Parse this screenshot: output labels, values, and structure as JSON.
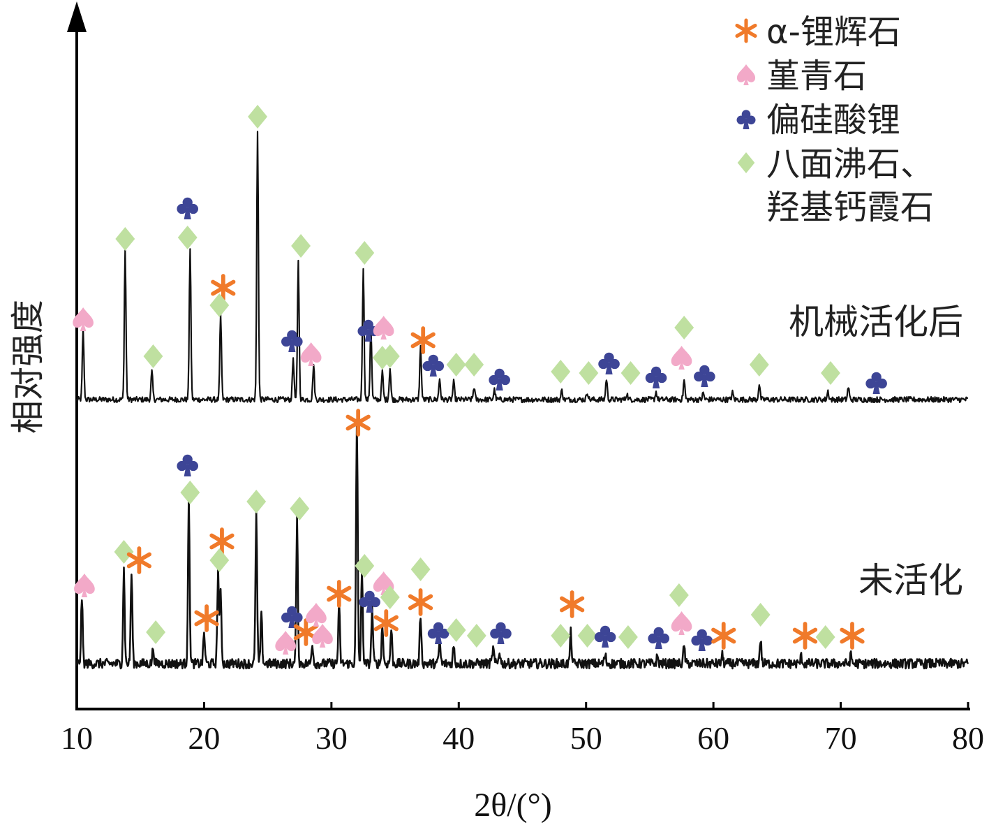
{
  "chart_data": {
    "type": "line",
    "xlabel": "2θ/(°)",
    "ylabel": "相对强度",
    "xlim": [
      10,
      80
    ],
    "xticks": [
      10,
      20,
      30,
      40,
      50,
      60,
      70,
      80
    ],
    "grid": false,
    "legend_position": "top-right",
    "legend": [
      {
        "key": "spodumene",
        "label": "α-锂辉石",
        "color": "#f07a2a",
        "glyph": "star"
      },
      {
        "key": "cordierite",
        "label": "堇青石",
        "color": "#f2a9c8",
        "glyph": "spade"
      },
      {
        "key": "lithium_metasilicate",
        "label": "偏硅酸锂",
        "color": "#3d4596",
        "glyph": "club"
      },
      {
        "key": "faujasite_hydroxycancrinite",
        "label": "八面沸石、\n羟基钙霞石",
        "color": "#bfe0a0",
        "glyph": "diamond"
      }
    ],
    "series": [
      {
        "name": "机械活化后",
        "baseline": 0,
        "peaks": [
          [
            10.5,
            100
          ],
          [
            13.8,
            215
          ],
          [
            15.9,
            40
          ],
          [
            18.9,
            215
          ],
          [
            21.3,
            120
          ],
          [
            24.2,
            385
          ],
          [
            27.0,
            60
          ],
          [
            27.4,
            200
          ],
          [
            28.6,
            50
          ],
          [
            32.5,
            190
          ],
          [
            33.1,
            105
          ],
          [
            34.0,
            40
          ],
          [
            34.6,
            45
          ],
          [
            37.0,
            75
          ],
          [
            38.5,
            30
          ],
          [
            39.6,
            25
          ],
          [
            41.2,
            18
          ],
          [
            42.8,
            14
          ],
          [
            48.1,
            13
          ],
          [
            50.1,
            11
          ],
          [
            51.6,
            30
          ],
          [
            53.2,
            9
          ],
          [
            55.5,
            11
          ],
          [
            57.7,
            28
          ],
          [
            59.2,
            9
          ],
          [
            61.5,
            10
          ],
          [
            63.6,
            22
          ],
          [
            69.0,
            12
          ],
          [
            70.6,
            18
          ]
        ],
        "markers": [
          {
            "phase": "cordierite",
            "x": 10.5,
            "y": 115
          },
          {
            "phase": "faujasite_hydroxycancrinite",
            "x": 13.8,
            "y": 230
          },
          {
            "phase": "faujasite_hydroxycancrinite",
            "x": 16.0,
            "y": 62
          },
          {
            "phase": "faujasite_hydroxycancrinite",
            "x": 18.7,
            "y": 232
          },
          {
            "phase": "lithium_metasilicate",
            "x": 18.7,
            "y": 275
          },
          {
            "phase": "spodumene",
            "x": 21.5,
            "y": 160
          },
          {
            "phase": "faujasite_hydroxycancrinite",
            "x": 21.2,
            "y": 135
          },
          {
            "phase": "faujasite_hydroxycancrinite",
            "x": 24.2,
            "y": 405
          },
          {
            "phase": "lithium_metasilicate",
            "x": 26.9,
            "y": 85
          },
          {
            "phase": "cordierite",
            "x": 28.4,
            "y": 65
          },
          {
            "phase": "faujasite_hydroxycancrinite",
            "x": 27.6,
            "y": 220
          },
          {
            "phase": "faujasite_hydroxycancrinite",
            "x": 32.6,
            "y": 210
          },
          {
            "phase": "lithium_metasilicate",
            "x": 32.9,
            "y": 100
          },
          {
            "phase": "cordierite",
            "x": 34.1,
            "y": 103
          },
          {
            "phase": "faujasite_hydroxycancrinite",
            "x": 34.0,
            "y": 60
          },
          {
            "phase": "faujasite_hydroxycancrinite",
            "x": 34.6,
            "y": 62
          },
          {
            "phase": "spodumene",
            "x": 37.2,
            "y": 85
          },
          {
            "phase": "lithium_metasilicate",
            "x": 38.0,
            "y": 50
          },
          {
            "phase": "faujasite_hydroxycancrinite",
            "x": 39.8,
            "y": 50
          },
          {
            "phase": "faujasite_hydroxycancrinite",
            "x": 41.2,
            "y": 50
          },
          {
            "phase": "lithium_metasilicate",
            "x": 43.2,
            "y": 30
          },
          {
            "phase": "faujasite_hydroxycancrinite",
            "x": 48.0,
            "y": 40
          },
          {
            "phase": "faujasite_hydroxycancrinite",
            "x": 50.2,
            "y": 38
          },
          {
            "phase": "lithium_metasilicate",
            "x": 51.8,
            "y": 53
          },
          {
            "phase": "faujasite_hydroxycancrinite",
            "x": 53.5,
            "y": 38
          },
          {
            "phase": "lithium_metasilicate",
            "x": 55.5,
            "y": 33
          },
          {
            "phase": "cordierite",
            "x": 57.5,
            "y": 60
          },
          {
            "phase": "faujasite_hydroxycancrinite",
            "x": 57.7,
            "y": 103
          },
          {
            "phase": "lithium_metasilicate",
            "x": 59.3,
            "y": 35
          },
          {
            "phase": "faujasite_hydroxycancrinite",
            "x": 63.6,
            "y": 50
          },
          {
            "phase": "faujasite_hydroxycancrinite",
            "x": 69.2,
            "y": 38
          },
          {
            "phase": "lithium_metasilicate",
            "x": 72.8,
            "y": 25
          }
        ]
      },
      {
        "name": "未活化",
        "baseline": 0,
        "peaks": [
          [
            10.4,
            95
          ],
          [
            13.7,
            135
          ],
          [
            14.3,
            130
          ],
          [
            16.0,
            22
          ],
          [
            18.8,
            235
          ],
          [
            20.0,
            45
          ],
          [
            21.1,
            135
          ],
          [
            21.3,
            100
          ],
          [
            24.1,
            215
          ],
          [
            24.5,
            70
          ],
          [
            27.3,
            205
          ],
          [
            28.5,
            30
          ],
          [
            30.6,
            85
          ],
          [
            32.0,
            345
          ],
          [
            32.4,
            130
          ],
          [
            33.2,
            80
          ],
          [
            34.0,
            55
          ],
          [
            34.7,
            50
          ],
          [
            37.0,
            70
          ],
          [
            38.5,
            32
          ],
          [
            39.6,
            25
          ],
          [
            42.7,
            22
          ],
          [
            43.2,
            18
          ],
          [
            48.8,
            45
          ],
          [
            51.5,
            12
          ],
          [
            55.6,
            10
          ],
          [
            57.7,
            25
          ],
          [
            60.7,
            12
          ],
          [
            63.7,
            35
          ],
          [
            66.9,
            10
          ],
          [
            70.8,
            12
          ]
        ],
        "markers": [
          {
            "phase": "cordierite",
            "x": 10.6,
            "y": 112
          },
          {
            "phase": "faujasite_hydroxycancrinite",
            "x": 13.7,
            "y": 160
          },
          {
            "phase": "spodumene",
            "x": 14.9,
            "y": 148
          },
          {
            "phase": "faujasite_hydroxycancrinite",
            "x": 16.2,
            "y": 45
          },
          {
            "phase": "lithium_metasilicate",
            "x": 18.7,
            "y": 285
          },
          {
            "phase": "faujasite_hydroxycancrinite",
            "x": 18.9,
            "y": 245
          },
          {
            "phase": "spodumene",
            "x": 20.2,
            "y": 65
          },
          {
            "phase": "spodumene",
            "x": 21.4,
            "y": 175
          },
          {
            "phase": "faujasite_hydroxycancrinite",
            "x": 21.2,
            "y": 148
          },
          {
            "phase": "faujasite_hydroxycancrinite",
            "x": 24.1,
            "y": 232
          },
          {
            "phase": "cordierite",
            "x": 26.4,
            "y": 30
          },
          {
            "phase": "lithium_metasilicate",
            "x": 26.9,
            "y": 68
          },
          {
            "phase": "spodumene",
            "x": 28.0,
            "y": 45
          },
          {
            "phase": "cordierite",
            "x": 28.8,
            "y": 70
          },
          {
            "phase": "cordierite",
            "x": 29.3,
            "y": 40
          },
          {
            "phase": "faujasite_hydroxycancrinite",
            "x": 27.5,
            "y": 222
          },
          {
            "phase": "spodumene",
            "x": 30.6,
            "y": 100
          },
          {
            "phase": "spodumene",
            "x": 32.1,
            "y": 345
          },
          {
            "phase": "faujasite_hydroxycancrinite",
            "x": 32.6,
            "y": 140
          },
          {
            "phase": "cordierite",
            "x": 34.1,
            "y": 115
          },
          {
            "phase": "lithium_metasilicate",
            "x": 33.0,
            "y": 90
          },
          {
            "phase": "faujasite_hydroxycancrinite",
            "x": 34.6,
            "y": 95
          },
          {
            "phase": "spodumene",
            "x": 34.3,
            "y": 58
          },
          {
            "phase": "spodumene",
            "x": 37.0,
            "y": 88
          },
          {
            "phase": "faujasite_hydroxycancrinite",
            "x": 37.0,
            "y": 135
          },
          {
            "phase": "lithium_metasilicate",
            "x": 38.4,
            "y": 45
          },
          {
            "phase": "faujasite_hydroxycancrinite",
            "x": 39.8,
            "y": 48
          },
          {
            "phase": "faujasite_hydroxycancrinite",
            "x": 41.4,
            "y": 40
          },
          {
            "phase": "lithium_metasilicate",
            "x": 43.3,
            "y": 45
          },
          {
            "phase": "faujasite_hydroxycancrinite",
            "x": 48.0,
            "y": 40
          },
          {
            "phase": "spodumene",
            "x": 48.9,
            "y": 85
          },
          {
            "phase": "faujasite_hydroxycancrinite",
            "x": 50.1,
            "y": 40
          },
          {
            "phase": "lithium_metasilicate",
            "x": 51.5,
            "y": 40
          },
          {
            "phase": "faujasite_hydroxycancrinite",
            "x": 53.3,
            "y": 38
          },
          {
            "phase": "lithium_metasilicate",
            "x": 55.7,
            "y": 38
          },
          {
            "phase": "cordierite",
            "x": 57.5,
            "y": 58
          },
          {
            "phase": "faujasite_hydroxycancrinite",
            "x": 57.3,
            "y": 98
          },
          {
            "phase": "lithium_metasilicate",
            "x": 59.1,
            "y": 35
          },
          {
            "phase": "spodumene",
            "x": 60.8,
            "y": 40
          },
          {
            "phase": "faujasite_hydroxycancrinite",
            "x": 63.7,
            "y": 70
          },
          {
            "phase": "spodumene",
            "x": 67.2,
            "y": 40
          },
          {
            "phase": "faujasite_hydroxycancrinite",
            "x": 68.8,
            "y": 38
          },
          {
            "phase": "spodumene",
            "x": 70.9,
            "y": 40
          }
        ]
      }
    ]
  }
}
